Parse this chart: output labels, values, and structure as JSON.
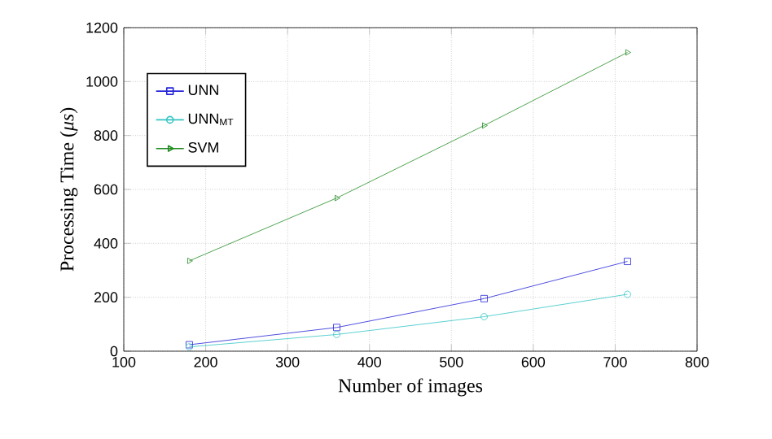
{
  "chart_data": {
    "type": "line",
    "xlabel": "Number of images",
    "ylabel": "Processing Time (*μs*)",
    "xlim": [
      100,
      800
    ],
    "xticks": [
      100,
      200,
      300,
      400,
      500,
      600,
      700,
      800
    ],
    "ylim": [
      0,
      1200
    ],
    "yticks": [
      0,
      200,
      400,
      600,
      800,
      1000,
      1200
    ],
    "grid": true,
    "legend": "top left",
    "series": [
      {
        "name": "UNN",
        "color": "#2323d8",
        "marker": "square",
        "x": [
          180,
          360,
          540,
          715
        ],
        "values": [
          24,
          88,
          195,
          333
        ]
      },
      {
        "name": "UNN$_{MT}$",
        "color": "#33c4c4",
        "marker": "circle",
        "x": [
          180,
          360,
          540,
          715
        ],
        "values": [
          16,
          62,
          128,
          211
        ]
      },
      {
        "name": "SVM",
        "color": "#228b22",
        "marker": "triangle",
        "x": [
          180,
          360,
          540,
          715
        ],
        "values": [
          335,
          568,
          837,
          1108
        ]
      }
    ]
  }
}
